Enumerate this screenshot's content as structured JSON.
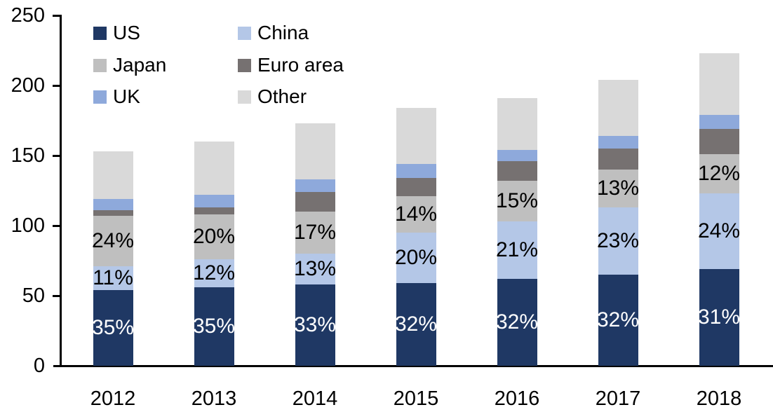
{
  "chart_data": {
    "type": "bar",
    "subtype": "stacked-column",
    "categories": [
      "2012",
      "2013",
      "2014",
      "2015",
      "2016",
      "2017",
      "2018"
    ],
    "series": [
      {
        "name": "US",
        "color": "#1F3864",
        "label_color": "#FFFFFF",
        "values": [
          54,
          56,
          58,
          59,
          62,
          65,
          69
        ],
        "labels": [
          "35%",
          "35%",
          "33%",
          "32%",
          "32%",
          "32%",
          "31%"
        ]
      },
      {
        "name": "China",
        "color": "#B4C7E7",
        "label_color": "#000000",
        "values": [
          17,
          20,
          22,
          36,
          41,
          48,
          54
        ],
        "labels": [
          "11%",
          "12%",
          "13%",
          "20%",
          "21%",
          "23%",
          "24%"
        ]
      },
      {
        "name": "Japan",
        "color": "#BFBFBF",
        "label_color": "#000000",
        "values": [
          36,
          32,
          30,
          26,
          29,
          27,
          28
        ],
        "labels": [
          "24%",
          "20%",
          "17%",
          "14%",
          "15%",
          "13%",
          "12%"
        ]
      },
      {
        "name": "Euro area",
        "color": "#767171",
        "label_color": "#000000",
        "values": [
          4,
          5,
          14,
          13,
          14,
          15,
          18
        ],
        "labels": [
          null,
          null,
          null,
          null,
          null,
          null,
          null
        ]
      },
      {
        "name": "UK",
        "color": "#8EA9DB",
        "label_color": "#000000",
        "values": [
          8,
          9,
          9,
          10,
          8,
          9,
          10
        ],
        "labels": [
          null,
          null,
          null,
          null,
          null,
          null,
          null
        ]
      },
      {
        "name": "Other",
        "color": "#D9D9D9",
        "label_color": "#000000",
        "values": [
          34,
          38,
          40,
          40,
          37,
          40,
          44
        ],
        "labels": [
          null,
          null,
          null,
          null,
          null,
          null,
          null
        ]
      }
    ],
    "totals": [
      153,
      160,
      173,
      184,
      191,
      204,
      223
    ],
    "y_axis": {
      "min": 0,
      "max": 250,
      "tick_interval": 50,
      "tick_labels": [
        "0",
        "50",
        "100",
        "150",
        "200",
        "250"
      ]
    },
    "grid": "off",
    "legend": {
      "position": "top-left",
      "columns": [
        [
          "US",
          "Japan",
          "UK"
        ],
        [
          "China",
          "Euro area",
          "Other"
        ]
      ]
    },
    "axis_color": "#000000",
    "text_color": "#000000",
    "background_color": "#FFFFFF"
  }
}
